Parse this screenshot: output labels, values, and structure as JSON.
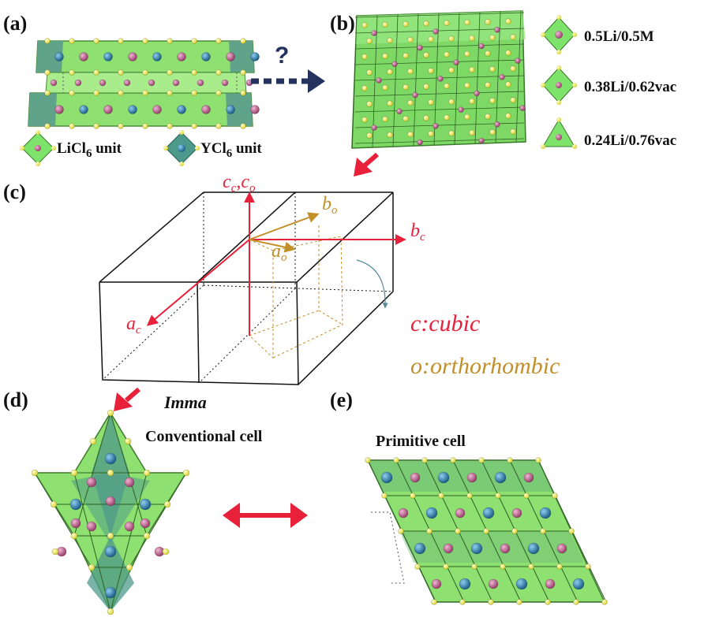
{
  "panels": {
    "a": "(a)",
    "b": "(b)",
    "c": "(c)",
    "d": "(d)",
    "e": "(e)"
  },
  "panel_a": {
    "question_mark": "?",
    "legend": [
      {
        "main": "LiCl",
        "sub": "6",
        "tail": " unit",
        "icon": "licl6-octahedron-icon"
      },
      {
        "main": "YCl",
        "sub": "6",
        "tail": " unit",
        "icon": "ycl6-octahedron-icon"
      }
    ]
  },
  "panel_b": {
    "legend": [
      {
        "label": "0.5Li/0.5M",
        "icon": "mixed-octahedron-icon"
      },
      {
        "label": "0.38Li/0.62vac",
        "icon": "partial-octahedron-icon"
      },
      {
        "label": "0.24Li/0.76vac",
        "icon": "tetrahedron-icon"
      }
    ]
  },
  "panel_c": {
    "axes": {
      "cc": "c",
      "cc_sub": "c",
      "co": "c",
      "co_sub": "o",
      "bc": "b",
      "bc_sub": "c",
      "ac": "a",
      "ac_sub": "c",
      "bo": "b",
      "bo_sub": "o",
      "ao": "a",
      "ao_sub": "o"
    },
    "legend_cubic": "c:cubic",
    "legend_ortho": "o:orthorhombic",
    "space_group": "Imma"
  },
  "panel_d": {
    "title": "Conventional cell"
  },
  "panel_e": {
    "title": "Primitive cell"
  },
  "colors": {
    "licl6": "#7ee36a",
    "ycl6": "#4e9a8a",
    "chlorine": "#f3f07a",
    "lithium": "#c86a96",
    "yttrium": "#2f86b6",
    "cubic": "#e8203a",
    "orthorhombic": "#c2902a",
    "arrow_dark": "#23335e"
  }
}
